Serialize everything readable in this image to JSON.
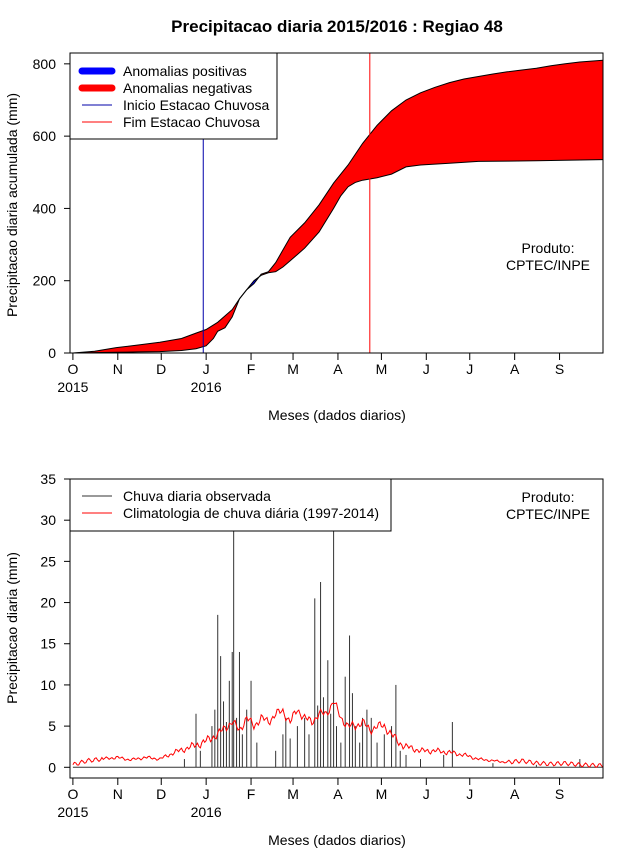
{
  "chart_data": [
    {
      "type": "area",
      "title": "Precipitacao diaria 2015/2016 : Regiao 48",
      "xlabel": "Meses (dados diarios)",
      "ylabel": "Precipitacao diaria acumulada (mm)",
      "ylim": [
        0,
        830
      ],
      "xlim_days": [
        -2,
        366
      ],
      "y_ticks": [
        0,
        200,
        400,
        600,
        800
      ],
      "month_ticks": [
        {
          "day": 0,
          "label": "O"
        },
        {
          "day": 31,
          "label": "N"
        },
        {
          "day": 61,
          "label": "D"
        },
        {
          "day": 92,
          "label": "J"
        },
        {
          "day": 123,
          "label": "F"
        },
        {
          "day": 152,
          "label": "M"
        },
        {
          "day": 183,
          "label": "A"
        },
        {
          "day": 213,
          "label": "M"
        },
        {
          "day": 244,
          "label": "J"
        },
        {
          "day": 274,
          "label": "J"
        },
        {
          "day": 305,
          "label": "A"
        },
        {
          "day": 336,
          "label": "S"
        }
      ],
      "year_labels": [
        {
          "day": 0,
          "label": "2015"
        },
        {
          "day": 92,
          "label": "2016"
        }
      ],
      "observed_cumulative": {
        "days": [
          0,
          15,
          30,
          45,
          60,
          75,
          85,
          92,
          97,
          100,
          105,
          110,
          115,
          120,
          125,
          130,
          135,
          140,
          145,
          150,
          160,
          170,
          180,
          185,
          190,
          195,
          200,
          210,
          220,
          230,
          240,
          260,
          280,
          300,
          320,
          340,
          366
        ],
        "values": [
          0,
          1,
          2,
          3,
          4,
          7,
          12,
          20,
          40,
          60,
          70,
          100,
          150,
          175,
          200,
          215,
          222,
          225,
          238,
          255,
          290,
          335,
          400,
          435,
          460,
          472,
          478,
          485,
          495,
          515,
          520,
          525,
          530,
          531,
          532,
          533,
          535
        ]
      },
      "climatology_cumulative": {
        "days": [
          0,
          15,
          30,
          45,
          60,
          75,
          85,
          92,
          100,
          110,
          115,
          120,
          125,
          130,
          135,
          140,
          145,
          150,
          160,
          170,
          180,
          190,
          200,
          210,
          220,
          230,
          240,
          250,
          260,
          270,
          280,
          290,
          300,
          310,
          320,
          330,
          340,
          350,
          366
        ],
        "values": [
          0,
          5,
          15,
          22,
          30,
          40,
          55,
          65,
          85,
          120,
          150,
          175,
          192,
          218,
          225,
          250,
          285,
          320,
          360,
          410,
          470,
          520,
          580,
          630,
          670,
          700,
          720,
          735,
          748,
          758,
          765,
          772,
          778,
          783,
          788,
          795,
          800,
          805,
          810
        ]
      },
      "rainy_season_start_day": 90,
      "rainy_season_end_day": 205,
      "legend": [
        {
          "label": "Anomalias positivas",
          "color": "#0000ff"
        },
        {
          "label": "Anomalias negativas",
          "color": "#ff0000"
        },
        {
          "label": "Inicio Estacao Chuvosa",
          "color": "#0000aa"
        },
        {
          "label": "Fim Estacao Chuvosa",
          "color": "#ff0000"
        }
      ],
      "annotation": [
        "Produto:",
        "CPTEC/INPE"
      ]
    },
    {
      "type": "line",
      "title": "",
      "xlabel": "Meses (dados diarios)",
      "ylabel": "Precipitacao diaria (mm)",
      "ylim": [
        -1.3,
        35
      ],
      "xlim_days": [
        -2,
        366
      ],
      "y_ticks": [
        0,
        5,
        10,
        15,
        20,
        25,
        30,
        35
      ],
      "month_ticks": [
        {
          "day": 0,
          "label": "O"
        },
        {
          "day": 31,
          "label": "N"
        },
        {
          "day": 61,
          "label": "D"
        },
        {
          "day": 92,
          "label": "J"
        },
        {
          "day": 123,
          "label": "F"
        },
        {
          "day": 152,
          "label": "M"
        },
        {
          "day": 183,
          "label": "A"
        },
        {
          "day": 213,
          "label": "M"
        },
        {
          "day": 244,
          "label": "J"
        },
        {
          "day": 274,
          "label": "J"
        },
        {
          "day": 305,
          "label": "A"
        },
        {
          "day": 336,
          "label": "S"
        }
      ],
      "year_labels": [
        {
          "day": 0,
          "label": "2015"
        },
        {
          "day": 92,
          "label": "2016"
        }
      ],
      "observed_daily_peaks": [
        {
          "day": 77,
          "value": 1.0
        },
        {
          "day": 85,
          "value": 6.5
        },
        {
          "day": 88,
          "value": 2.0
        },
        {
          "day": 96,
          "value": 5.0
        },
        {
          "day": 98,
          "value": 7.0
        },
        {
          "day": 100,
          "value": 18.5
        },
        {
          "day": 102,
          "value": 13.5
        },
        {
          "day": 104,
          "value": 8.0
        },
        {
          "day": 106,
          "value": 5.5
        },
        {
          "day": 108,
          "value": 10.5
        },
        {
          "day": 110,
          "value": 14.0
        },
        {
          "day": 111,
          "value": 30.0
        },
        {
          "day": 113,
          "value": 6.0
        },
        {
          "day": 115,
          "value": 14.0
        },
        {
          "day": 117,
          "value": 4.0
        },
        {
          "day": 120,
          "value": 7.0
        },
        {
          "day": 123,
          "value": 10.5
        },
        {
          "day": 127,
          "value": 3.0
        },
        {
          "day": 140,
          "value": 2.0
        },
        {
          "day": 145,
          "value": 4.0
        },
        {
          "day": 147,
          "value": 6.0
        },
        {
          "day": 150,
          "value": 3.5
        },
        {
          "day": 155,
          "value": 5.0
        },
        {
          "day": 160,
          "value": 6.0
        },
        {
          "day": 163,
          "value": 4.0
        },
        {
          "day": 167,
          "value": 20.5
        },
        {
          "day": 169,
          "value": 7.5
        },
        {
          "day": 171,
          "value": 22.5
        },
        {
          "day": 173,
          "value": 8.5
        },
        {
          "day": 176,
          "value": 13.0
        },
        {
          "day": 178,
          "value": 6.5
        },
        {
          "day": 180,
          "value": 29.5
        },
        {
          "day": 182,
          "value": 5.0
        },
        {
          "day": 185,
          "value": 3.0
        },
        {
          "day": 188,
          "value": 11.0
        },
        {
          "day": 191,
          "value": 16.0
        },
        {
          "day": 193,
          "value": 9.0
        },
        {
          "day": 195,
          "value": 5.0
        },
        {
          "day": 198,
          "value": 3.0
        },
        {
          "day": 200,
          "value": 6.0
        },
        {
          "day": 203,
          "value": 7.0
        },
        {
          "day": 206,
          "value": 6.0
        },
        {
          "day": 210,
          "value": 3.0
        },
        {
          "day": 215,
          "value": 4.0
        },
        {
          "day": 220,
          "value": 5.0
        },
        {
          "day": 223,
          "value": 10.0
        },
        {
          "day": 226,
          "value": 2.0
        },
        {
          "day": 230,
          "value": 1.5
        },
        {
          "day": 240,
          "value": 1.0
        },
        {
          "day": 256,
          "value": 1.5
        },
        {
          "day": 262,
          "value": 5.5
        },
        {
          "day": 290,
          "value": 0.5
        },
        {
          "day": 320,
          "value": 0.3
        },
        {
          "day": 350,
          "value": 1.0
        }
      ],
      "climatology_daily": {
        "days": [
          0,
          10,
          20,
          30,
          40,
          50,
          60,
          70,
          80,
          90,
          95,
          100,
          105,
          110,
          115,
          120,
          125,
          130,
          135,
          140,
          145,
          150,
          155,
          160,
          165,
          170,
          175,
          180,
          185,
          190,
          195,
          200,
          205,
          210,
          215,
          220,
          225,
          230,
          240,
          250,
          260,
          270,
          280,
          290,
          300,
          310,
          320,
          330,
          340,
          350,
          366
        ],
        "values": [
          0.3,
          0.8,
          1.0,
          1.2,
          0.9,
          1.2,
          1.0,
          1.8,
          2.4,
          3.0,
          3.5,
          4.0,
          4.8,
          5.5,
          4.5,
          6.0,
          5.0,
          6.0,
          5.5,
          6.5,
          6.8,
          5.5,
          7.0,
          6.0,
          5.5,
          6.5,
          6.5,
          8.0,
          6.0,
          5.0,
          5.0,
          5.5,
          4.5,
          5.0,
          5.0,
          4.0,
          3.0,
          2.5,
          2.0,
          2.0,
          1.8,
          1.5,
          1.0,
          0.8,
          0.6,
          0.8,
          0.5,
          0.4,
          0.5,
          0.3,
          0.2
        ]
      },
      "legend": [
        {
          "label": "Chuva diaria observada",
          "color": "#333333"
        },
        {
          "label": "Climatologia de chuva diária (1997-2014)",
          "color": "#ff0000"
        }
      ],
      "annotation": [
        "Produto:",
        "CPTEC/INPE"
      ]
    }
  ],
  "colors": {
    "negative": "#ff0000",
    "positive": "#0000ff",
    "season_start": "#0000aa",
    "season_end": "#ff0000",
    "observed": "#333333",
    "climatology": "#ff0000"
  }
}
